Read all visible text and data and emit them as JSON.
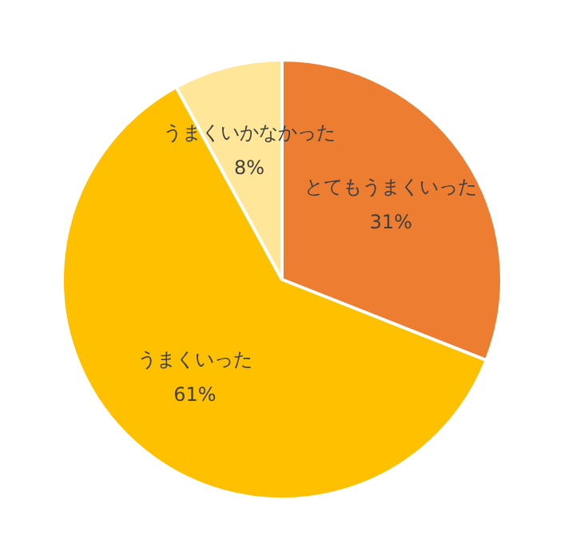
{
  "chart_data": {
    "type": "pie",
    "categories": [
      "とてもうまくいった",
      "うまくいった",
      "うまくいかなかった"
    ],
    "values": [
      31,
      61,
      8
    ],
    "colors": [
      "#ed7d31",
      "#ffc000",
      "#ffe699"
    ],
    "value_labels": [
      "31%",
      "61%",
      "8%"
    ],
    "legend": false
  }
}
